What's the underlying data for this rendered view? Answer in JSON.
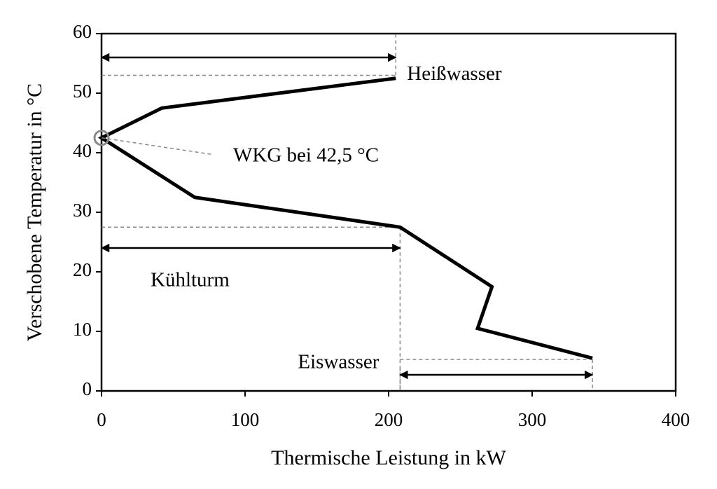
{
  "chart_data": {
    "type": "line",
    "xlabel": "Thermische Leistung in kW",
    "ylabel": "Verschobene Temperatur in °C",
    "xlim": [
      0,
      400
    ],
    "xticks": [
      0,
      100,
      200,
      300,
      400
    ],
    "ylim": [
      0,
      60
    ],
    "yticks": [
      0,
      10,
      20,
      30,
      40,
      50,
      60
    ],
    "series": [
      {
        "color": "#000000",
        "x": [
          205,
          42,
          0,
          65,
          208,
          272,
          262,
          342
        ],
        "values": [
          52.5,
          47.5,
          42.5,
          32.5,
          27.5,
          17.5,
          10.5,
          5.5
        ]
      }
    ],
    "point_annotation": {
      "text": "WKG bei 42,5 °C",
      "x": 0,
      "y": 42.5
    },
    "annotations": [
      {
        "text": "Heißwasser",
        "x": [
          0,
          205
        ],
        "y": 56,
        "level": 53
      },
      {
        "text": "Kühlturm",
        "x": [
          0,
          208
        ],
        "y": 24,
        "level": 27.5
      },
      {
        "text": "Eiswasser",
        "x": [
          208,
          342
        ],
        "y": 2.7,
        "level": 5.3
      }
    ]
  }
}
